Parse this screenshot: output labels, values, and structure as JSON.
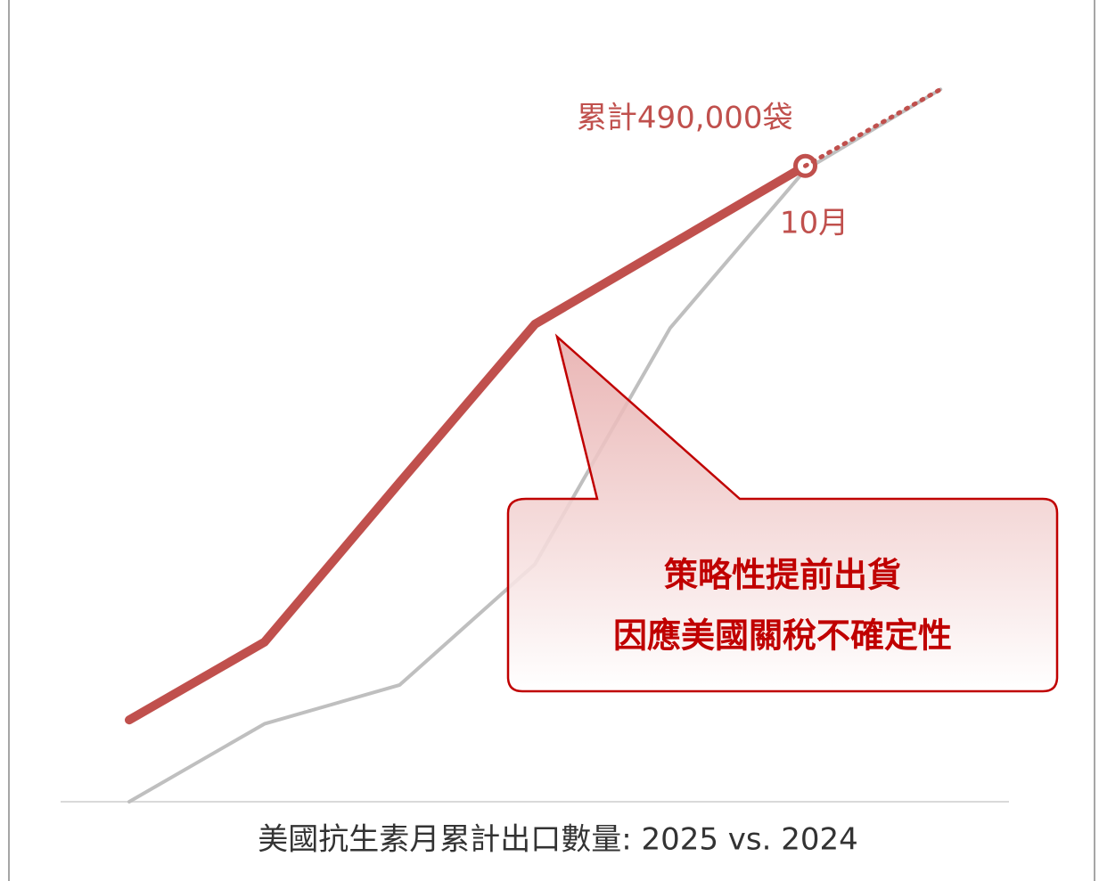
{
  "chart_data": {
    "type": "line",
    "title": "美國抗生素月累計出口數量: 2025 vs. 2024",
    "categories": [
      null,
      null,
      null,
      null,
      null,
      "10月",
      null
    ],
    "series": [
      {
        "color": "#bfbfbf",
        "values": [
          0,
          60000,
          90000,
          183000,
          365000,
          487000,
          549000
        ]
      },
      {
        "color": "#c0504d",
        "values": [
          63000,
          123000,
          246000,
          368000,
          429000,
          490000,
          null
        ],
        "value_labels": [
          null,
          null,
          null,
          null,
          null,
          "累計490,000袋",
          null
        ]
      },
      {
        "color": "#c0504d",
        "dash": true,
        "values": [
          null,
          null,
          null,
          null,
          null,
          490000,
          549000
        ]
      }
    ],
    "annotation": [
      "策略性提前出貨",
      "因應美國關稅不確定性"
    ],
    "ylim": [
      0,
      600000
    ]
  }
}
